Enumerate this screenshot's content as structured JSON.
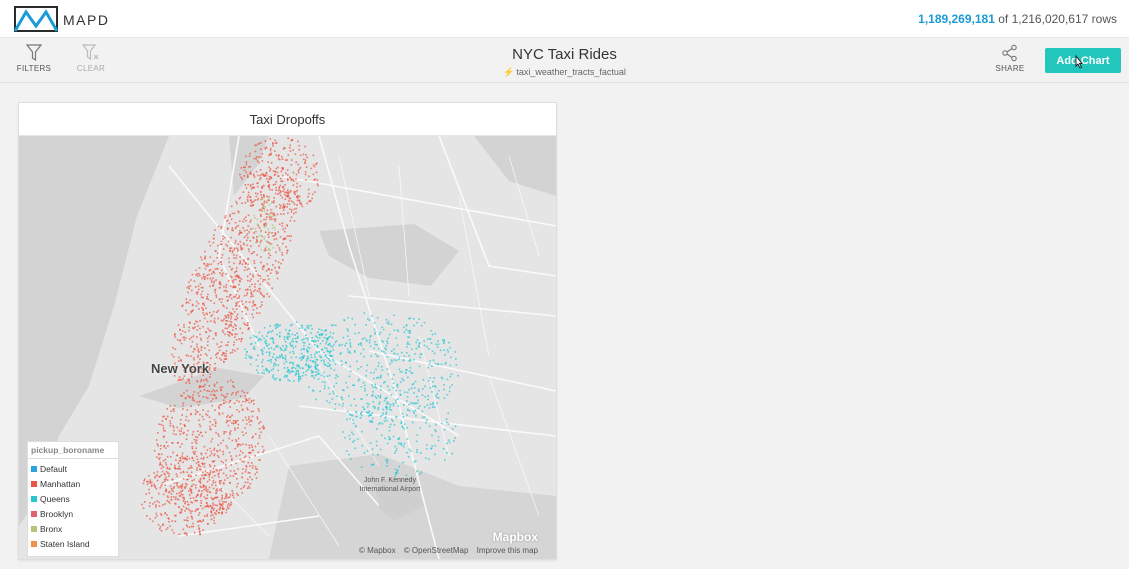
{
  "brand": {
    "logo_text": "MAPD"
  },
  "row_count": {
    "filtered": "1,189,269,181",
    "suffix": "of 1,216,020,617 rows"
  },
  "toolbar": {
    "filters_label": "FILTERS",
    "clear_label": "CLEAR",
    "share_label": "SHARE",
    "add_chart_label": "Add Chart"
  },
  "dashboard": {
    "title": "NYC Taxi Rides",
    "source_table": "taxi_weather_tracts_factual"
  },
  "chart": {
    "title": "Taxi Dropoffs",
    "type": "pointmap",
    "legend": {
      "title": "pickup_boroname",
      "items": [
        {
          "label": "Default",
          "color": "#27a3dd"
        },
        {
          "label": "Manhattan",
          "color": "#ea5545"
        },
        {
          "label": "Queens",
          "color": "#27c6d1"
        },
        {
          "label": "Brooklyn",
          "color": "#e4606b"
        },
        {
          "label": "Bronx",
          "color": "#b2c57a"
        },
        {
          "label": "Staten Island",
          "color": "#ef8f54"
        }
      ]
    },
    "map_labels": {
      "city": "New York",
      "airport": "John F. Kennedy International Airport"
    },
    "attribution": {
      "mapbox": "© Mapbox",
      "osm": "© OpenStreetMap",
      "improve": "Improve this map",
      "watermark": "Mapbox"
    }
  },
  "colors": {
    "accent": "#22c6bd",
    "count_highlight": "#1a9bd7"
  }
}
